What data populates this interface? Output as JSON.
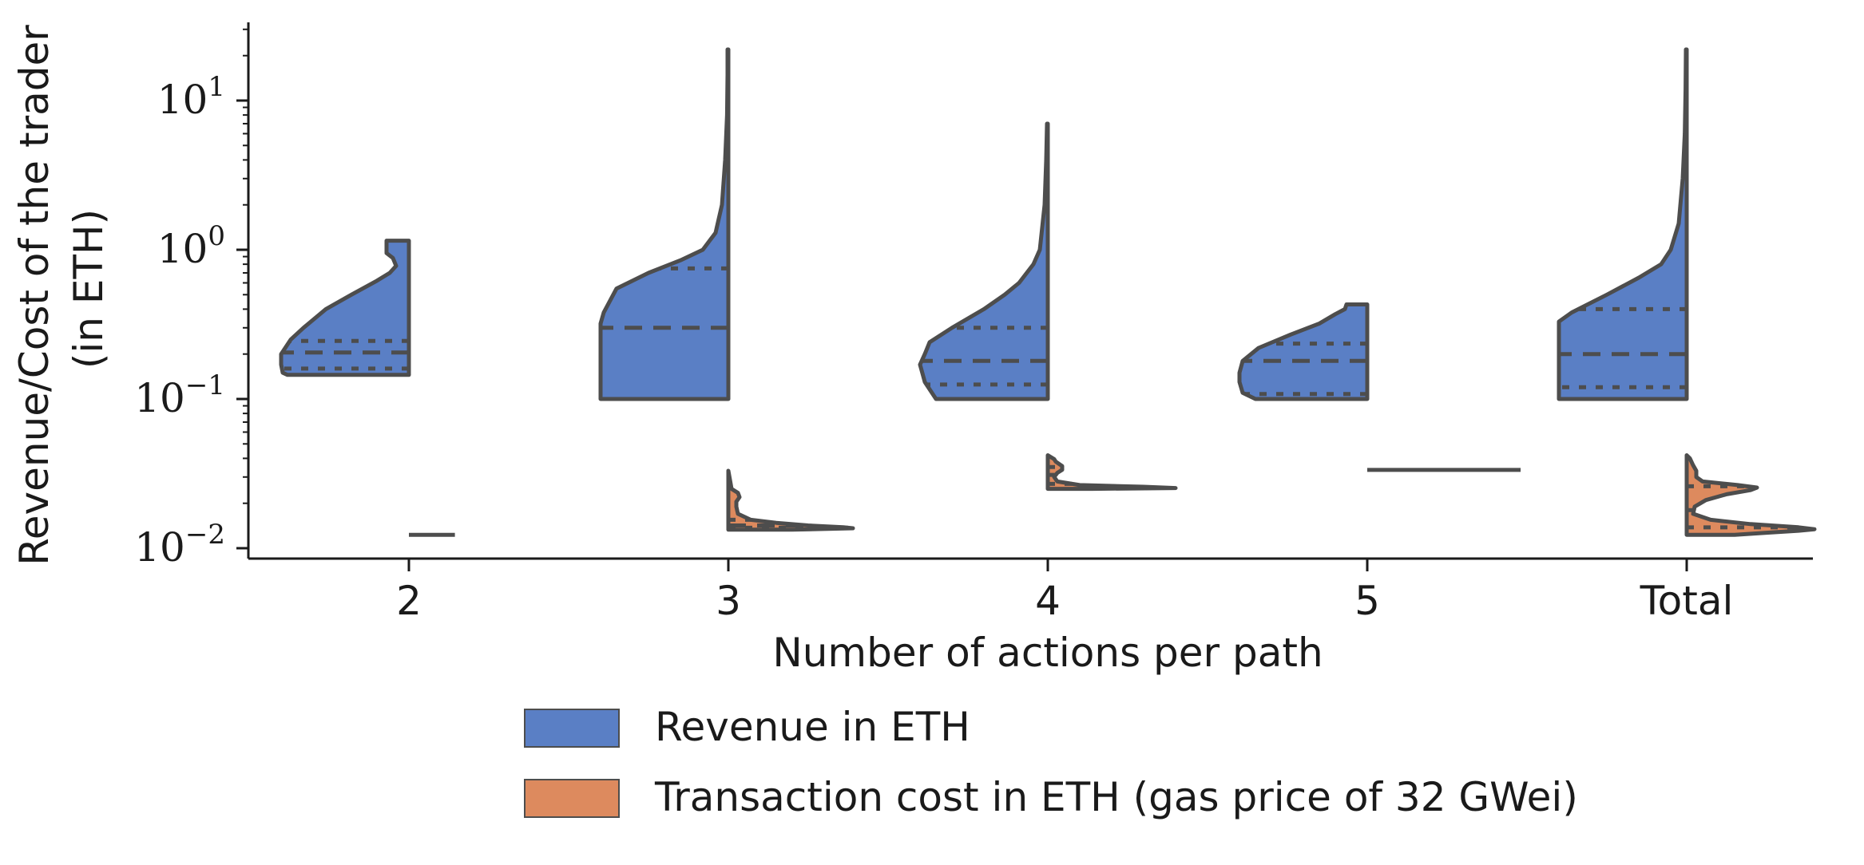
{
  "chart_data": {
    "type": "violin",
    "subtype": "split-violin",
    "xlabel": "Number of actions per path",
    "ylabel_lines": [
      "Revenue/Cost of the trader",
      "(in ETH)"
    ],
    "yscale": "log",
    "ylim": [
      0.0085,
      30
    ],
    "yticks": [
      {
        "value": 0.01,
        "base": "10",
        "exp": "−2"
      },
      {
        "value": 0.1,
        "base": "10",
        "exp": "−1"
      },
      {
        "value": 1,
        "base": "10",
        "exp": "0"
      },
      {
        "value": 10,
        "base": "10",
        "exp": "1"
      }
    ],
    "categories": [
      "2",
      "3",
      "4",
      "5",
      "Total"
    ],
    "grid": false,
    "inner": "quartile",
    "legend": {
      "placement": "bottom-center",
      "entries": [
        {
          "label": "Revenue in ETH",
          "color": "#5a7fc5"
        },
        {
          "label": "Transaction cost in ETH (gas price of 32 GWei)",
          "color": "#dd8a5e"
        }
      ]
    },
    "series": [
      {
        "name": "Revenue in ETH",
        "side": "left",
        "color": "#5a7fc5",
        "violins": [
          {
            "category": "2",
            "min": 0.145,
            "max": 1.15,
            "quartiles": [
              0.16,
              0.205,
              0.245
            ],
            "profile": [
              [
                0.145,
                0.76
              ],
              [
                0.15,
                0.79
              ],
              [
                0.17,
                0.8
              ],
              [
                0.2,
                0.8
              ],
              [
                0.25,
                0.74
              ],
              [
                0.3,
                0.66
              ],
              [
                0.4,
                0.52
              ],
              [
                0.5,
                0.36
              ],
              [
                0.62,
                0.2
              ],
              [
                0.7,
                0.12
              ],
              [
                0.78,
                0.08
              ],
              [
                0.88,
                0.1
              ],
              [
                0.95,
                0.14
              ],
              [
                1.05,
                0.14
              ],
              [
                1.15,
                0.14
              ]
            ]
          },
          {
            "category": "3",
            "min": 0.1,
            "max": 22,
            "quartiles": [
              0.3,
              0.75
            ],
            "profile": [
              [
                0.1,
                0.8
              ],
              [
                0.2,
                0.8
              ],
              [
                0.32,
                0.8
              ],
              [
                0.38,
                0.78
              ],
              [
                0.55,
                0.7
              ],
              [
                0.7,
                0.5
              ],
              [
                0.85,
                0.3
              ],
              [
                1.0,
                0.16
              ],
              [
                1.3,
                0.08
              ],
              [
                2.0,
                0.04
              ],
              [
                4.0,
                0.02
              ],
              [
                8.0,
                0.008
              ],
              [
                15,
                0.005
              ],
              [
                22,
                0.005
              ]
            ]
          },
          {
            "category": "4",
            "min": 0.1,
            "max": 7,
            "quartiles": [
              0.125,
              0.18,
              0.3
            ],
            "profile": [
              [
                0.1,
                0.7
              ],
              [
                0.13,
                0.77
              ],
              [
                0.17,
                0.8
              ],
              [
                0.2,
                0.77
              ],
              [
                0.24,
                0.74
              ],
              [
                0.3,
                0.6
              ],
              [
                0.4,
                0.4
              ],
              [
                0.5,
                0.27
              ],
              [
                0.6,
                0.18
              ],
              [
                0.8,
                0.09
              ],
              [
                1.0,
                0.05
              ],
              [
                2.0,
                0.02
              ],
              [
                4.0,
                0.01
              ],
              [
                7.0,
                0.005
              ]
            ]
          },
          {
            "category": "5",
            "min": 0.1,
            "max": 0.43,
            "quartiles": [
              0.108,
              0.18,
              0.235
            ],
            "profile": [
              [
                0.1,
                0.7
              ],
              [
                0.11,
                0.78
              ],
              [
                0.13,
                0.8
              ],
              [
                0.15,
                0.8
              ],
              [
                0.18,
                0.78
              ],
              [
                0.22,
                0.68
              ],
              [
                0.27,
                0.48
              ],
              [
                0.32,
                0.3
              ],
              [
                0.37,
                0.2
              ],
              [
                0.4,
                0.14
              ],
              [
                0.43,
                0.13
              ]
            ]
          },
          {
            "category": "Total",
            "min": 0.1,
            "max": 22,
            "quartiles": [
              0.12,
              0.2,
              0.4
            ],
            "profile": [
              [
                0.1,
                0.8
              ],
              [
                0.2,
                0.8
              ],
              [
                0.33,
                0.8
              ],
              [
                0.38,
                0.72
              ],
              [
                0.5,
                0.5
              ],
              [
                0.65,
                0.3
              ],
              [
                0.8,
                0.16
              ],
              [
                1.0,
                0.1
              ],
              [
                1.5,
                0.05
              ],
              [
                3.0,
                0.025
              ],
              [
                6.0,
                0.012
              ],
              [
                12,
                0.007
              ],
              [
                22,
                0.005
              ]
            ]
          }
        ]
      },
      {
        "name": "Transaction cost in ETH (gas price of 32 GWei)",
        "side": "right",
        "color": "#dd8a5e",
        "violins": [
          {
            "category": "2",
            "collapsed": true,
            "value": 0.0123,
            "width": 0.24
          },
          {
            "category": "3",
            "min": 0.0133,
            "max": 0.033,
            "quartiles": [
              0.0137,
              0.0142,
              0.0155
            ],
            "profile": [
              [
                0.0133,
                0.4
              ],
              [
                0.0136,
                0.78
              ],
              [
                0.0138,
                0.72
              ],
              [
                0.0142,
                0.5
              ],
              [
                0.0148,
                0.3
              ],
              [
                0.0155,
                0.14
              ],
              [
                0.017,
                0.06
              ],
              [
                0.019,
                0.05
              ],
              [
                0.0205,
                0.05
              ],
              [
                0.022,
                0.07
              ],
              [
                0.0235,
                0.06
              ],
              [
                0.025,
                0.02
              ],
              [
                0.028,
                0.012
              ],
              [
                0.033,
                0.0
              ]
            ]
          },
          {
            "category": "4",
            "min": 0.025,
            "max": 0.042,
            "quartiles": [
              0.027,
              0.031,
              0.035
            ],
            "profile": [
              [
                0.025,
                0.28
              ],
              [
                0.0253,
                0.8
              ],
              [
                0.0258,
                0.6
              ],
              [
                0.0265,
                0.2
              ],
              [
                0.028,
                0.06
              ],
              [
                0.03,
                0.04
              ],
              [
                0.032,
                0.06
              ],
              [
                0.0335,
                0.09
              ],
              [
                0.0355,
                0.09
              ],
              [
                0.038,
                0.05
              ],
              [
                0.0395,
                0.04
              ],
              [
                0.042,
                0.0
              ]
            ]
          },
          {
            "category": "5",
            "collapsed": true,
            "value": 0.0335,
            "width": 0.8
          },
          {
            "category": "Total",
            "min": 0.0123,
            "max": 0.042,
            "quartiles": [
              0.0138,
              0.018,
              0.026
            ],
            "profile": [
              [
                0.0123,
                0.3
              ],
              [
                0.0127,
                0.5
              ],
              [
                0.0131,
                0.7
              ],
              [
                0.0134,
                0.8
              ],
              [
                0.0138,
                0.7
              ],
              [
                0.0145,
                0.4
              ],
              [
                0.0155,
                0.15
              ],
              [
                0.017,
                0.04
              ],
              [
                0.019,
                0.05
              ],
              [
                0.021,
                0.12
              ],
              [
                0.023,
                0.25
              ],
              [
                0.0245,
                0.4
              ],
              [
                0.0255,
                0.44
              ],
              [
                0.0265,
                0.32
              ],
              [
                0.028,
                0.1
              ],
              [
                0.03,
                0.06
              ],
              [
                0.033,
                0.06
              ],
              [
                0.036,
                0.04
              ],
              [
                0.04,
                0.02
              ],
              [
                0.042,
                0.0
              ]
            ]
          }
        ]
      }
    ]
  }
}
